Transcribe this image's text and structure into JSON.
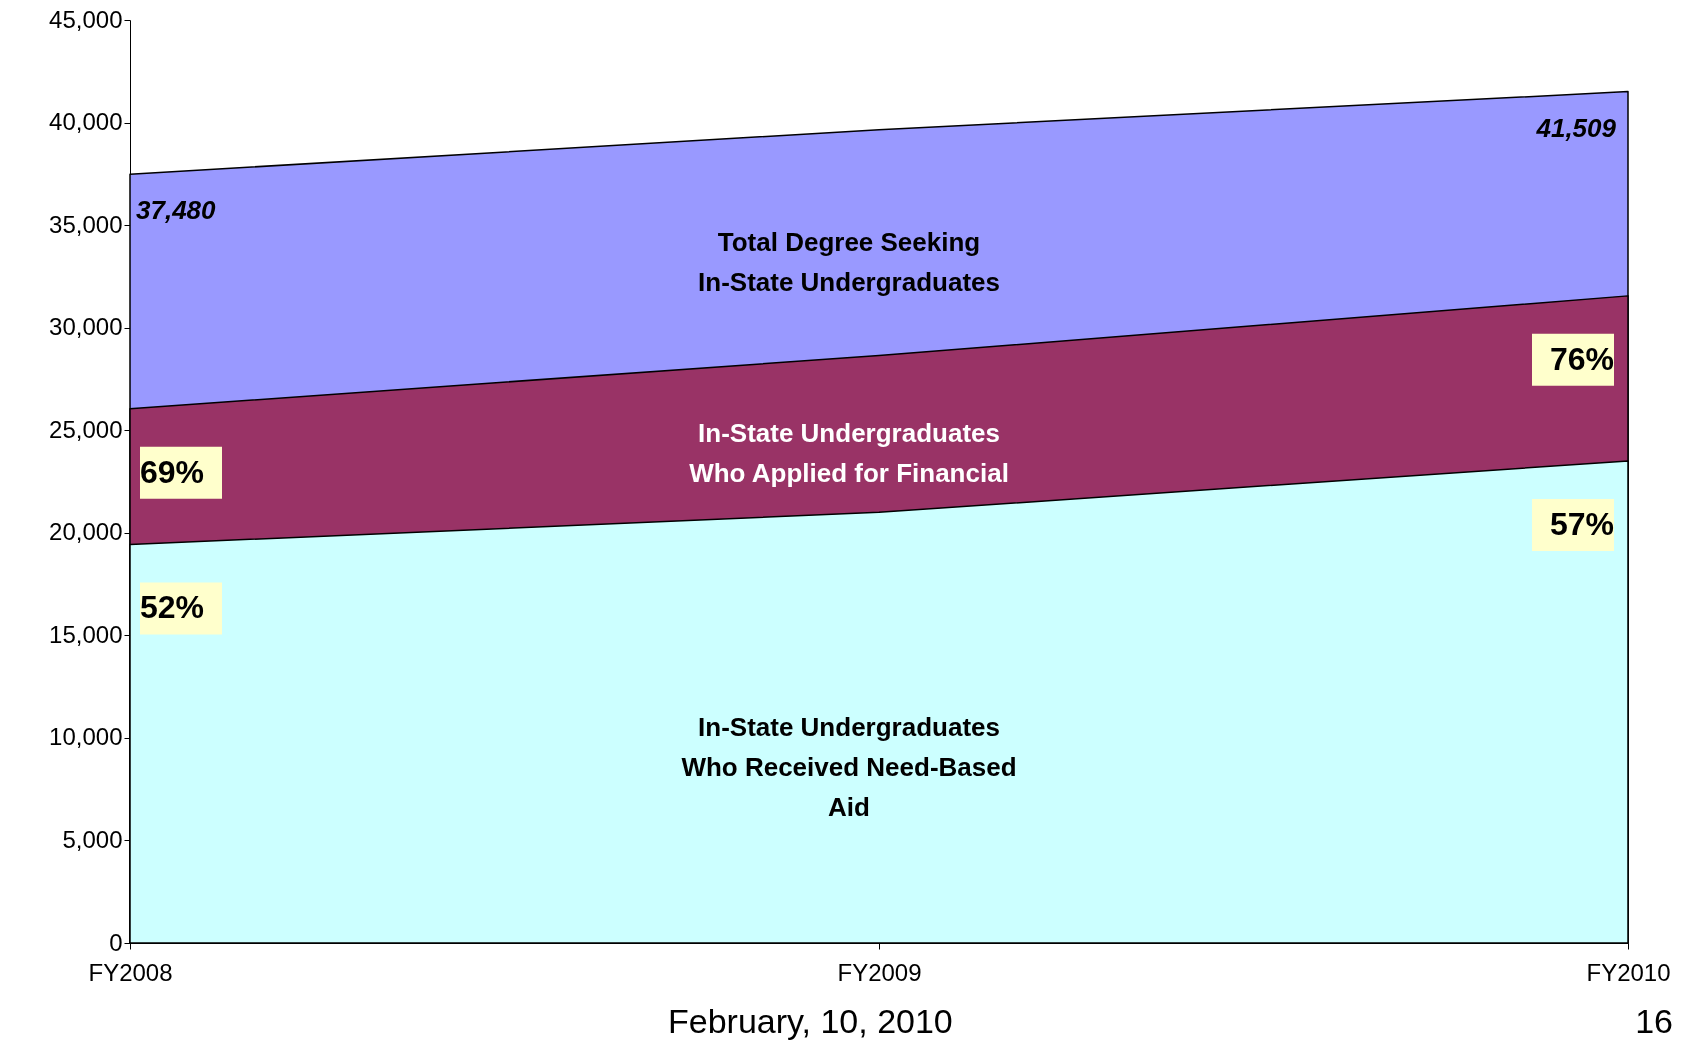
{
  "chart_data": {
    "type": "area",
    "categories": [
      "FY2008",
      "FY2009",
      "FY2010"
    ],
    "series": [
      {
        "name": "Total Degree Seeking In-State Undergraduates",
        "color": "#9999ff",
        "values": [
          37480,
          39650,
          41509
        ],
        "value_labels": [
          "37,480",
          null,
          "41,509"
        ]
      },
      {
        "name": "In-State Undergraduates Who Applied for Financial",
        "color": "#993366",
        "values": [
          26050,
          28640,
          31550
        ]
      },
      {
        "name": "In-State Undergraduates Who Received Need-Based Aid",
        "color": "#ccffff",
        "values": [
          19430,
          21000,
          23500
        ]
      }
    ],
    "ylim": [
      0,
      45000
    ],
    "yticks": [
      {
        "value": 0,
        "label": "0"
      },
      {
        "value": 5000,
        "label": "5,000"
      },
      {
        "value": 10000,
        "label": "10,000"
      },
      {
        "value": 15000,
        "label": "15,000"
      },
      {
        "value": 20000,
        "label": "20,000"
      },
      {
        "value": 25000,
        "label": "25,000"
      },
      {
        "value": 30000,
        "label": "30,000"
      },
      {
        "value": 35000,
        "label": "35,000"
      },
      {
        "value": 40000,
        "label": "40,000"
      },
      {
        "value": 45000,
        "label": "45,000"
      }
    ],
    "grid": false,
    "annotations": [
      {
        "text": "69%",
        "x": "FY2008",
        "y": 26050
      },
      {
        "text": "76%",
        "x": "FY2010",
        "y": 31550
      },
      {
        "text": "52%",
        "x": "FY2008",
        "y": 19430
      },
      {
        "text": "57%",
        "x": "FY2010",
        "y": 23500
      },
      "February, 10, 2010",
      "16"
    ]
  }
}
